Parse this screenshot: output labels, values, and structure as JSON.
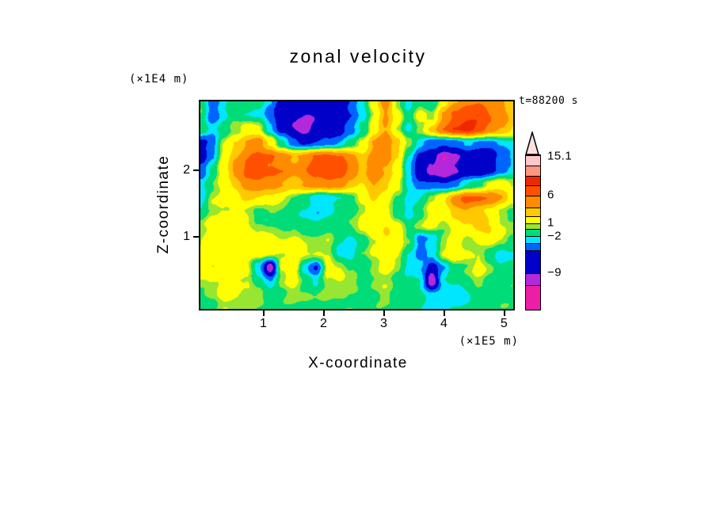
{
  "chart_data": {
    "type": "heatmap",
    "title": "zonal velocity",
    "xlabel": "X-coordinate",
    "ylabel": "Z-coordinate",
    "x_units": "(×1E5 m)",
    "y_units": "(×1E4 m)",
    "annotation": "t=88200 s",
    "xlim": [
      -0.05,
      5.15
    ],
    "zlim": [
      -0.1,
      3.05
    ],
    "x_ticks": [
      1,
      2,
      3,
      4,
      5
    ],
    "z_ticks": [
      1,
      2
    ],
    "grid": "off",
    "levels": [
      -10,
      -8,
      -5,
      -3,
      -1.5,
      0.5,
      1.5,
      4,
      6,
      8.5,
      11,
      13.5
    ],
    "colors": [
      "#EC1EA8",
      "#B428DC",
      "#0000C8",
      "#0064FF",
      "#00E6FF",
      "#00DC78",
      "#96E632",
      "#FFFF00",
      "#FFC800",
      "#FF8C00",
      "#FF5000",
      "#F02800",
      "#FF9680"
    ],
    "field": [
      [
        0,
        -4,
        -2,
        0,
        0,
        -1,
        -3,
        -6,
        -7,
        -7,
        -7,
        -6,
        -6.5,
        -5,
        -2,
        3,
        7,
        1,
        -2,
        0,
        -1,
        3,
        6,
        8,
        8,
        7,
        6,
        4
      ],
      [
        0,
        -4,
        -2,
        0,
        -1,
        -2,
        -4,
        -7,
        -8,
        -8,
        -8,
        -7,
        -7,
        -5,
        -2,
        2,
        6,
        3,
        -1,
        2,
        1,
        6,
        9,
        11,
        11,
        9,
        7,
        5
      ],
      [
        0,
        -2,
        -1,
        1,
        3,
        2,
        -2,
        -6,
        -8,
        -9,
        -7,
        -6,
        -6,
        -4,
        -1,
        3,
        6,
        2,
        -2,
        1,
        5,
        8,
        11,
        12,
        10,
        8,
        6,
        4
      ],
      [
        -6,
        -4,
        1,
        4,
        6,
        7,
        4,
        -1,
        -4,
        -5,
        -5,
        -4,
        -3,
        -1,
        2,
        6,
        8,
        5,
        1,
        -2,
        -4,
        -5,
        -4,
        -3,
        -4,
        -4,
        -3,
        -2
      ],
      [
        -6,
        -3,
        2,
        6,
        8,
        9,
        9,
        7,
        6,
        7,
        9,
        10,
        9,
        7,
        5,
        7,
        8,
        4,
        -2,
        -6,
        -7,
        -10,
        -8,
        -7,
        -7,
        -6,
        -5,
        -3
      ],
      [
        -4,
        -1,
        3,
        7,
        9,
        10,
        9,
        8,
        7,
        8,
        10,
        11,
        10,
        8,
        6,
        7,
        6,
        3,
        -3,
        -7,
        -9,
        -10,
        -8,
        -7,
        -7,
        -6,
        -4,
        -2
      ],
      [
        -2,
        0,
        2,
        5,
        7,
        8,
        7,
        6,
        5,
        6,
        7,
        8,
        7,
        5,
        4,
        6,
        5,
        2,
        -2,
        -4,
        -5,
        -5,
        -4,
        -2,
        0,
        2,
        3,
        2
      ],
      [
        -2.5,
        1,
        2,
        3,
        4,
        4,
        3,
        2,
        1,
        -1,
        -2.5,
        -2.5,
        -2,
        0,
        2,
        4,
        3,
        0,
        -2,
        -1,
        1,
        4,
        7,
        9,
        9,
        8,
        6,
        3
      ],
      [
        -1,
        1,
        2,
        2,
        1,
        0,
        0,
        0,
        -1,
        -2,
        -2.5,
        -2,
        -1,
        0,
        1,
        3,
        2,
        -1,
        -2,
        0,
        2,
        3,
        5,
        6,
        5,
        3,
        1,
        0
      ],
      [
        1,
        2,
        3,
        3,
        2,
        1,
        0,
        0,
        0,
        -1,
        -1,
        0,
        0,
        1,
        2,
        3,
        4,
        2,
        0,
        1,
        2,
        1,
        2,
        4,
        5,
        4,
        2,
        1
      ],
      [
        1,
        2,
        3,
        3,
        3,
        2,
        2,
        2,
        2,
        1,
        1,
        1,
        -1,
        -2,
        -1,
        2,
        4,
        3,
        1,
        -4,
        -3,
        1,
        2,
        1,
        2,
        3,
        2,
        0
      ],
      [
        2,
        2,
        3,
        3,
        3,
        3,
        2,
        2,
        2,
        2,
        2,
        1,
        -2,
        -2.5,
        0,
        2,
        3,
        2,
        -1,
        -4,
        -2,
        2,
        3,
        2,
        1,
        -1,
        -2,
        -2
      ],
      [
        2,
        2,
        3,
        3,
        2,
        -3,
        -10,
        2,
        3,
        -2,
        -5,
        2,
        2,
        0,
        -1,
        1,
        2,
        1,
        -2,
        -3,
        -6,
        -3,
        0,
        1,
        2,
        1,
        -1,
        -1
      ],
      [
        1,
        2,
        2,
        2,
        2,
        -1,
        -3,
        1,
        2,
        0,
        -2,
        1,
        2,
        1,
        0,
        1,
        1,
        0,
        -1,
        -2,
        -10,
        -2,
        -1,
        0,
        1,
        0,
        -1,
        0
      ],
      [
        0,
        1,
        2,
        2,
        1,
        1,
        0,
        0,
        1,
        1,
        0,
        1,
        1,
        0,
        0,
        0,
        1,
        0,
        0,
        -1,
        -2,
        -2.5,
        -2,
        -2,
        -1,
        0,
        0,
        0
      ],
      [
        0,
        0,
        1,
        1,
        1,
        0,
        0,
        0,
        0,
        0,
        0,
        0,
        0,
        0,
        0,
        0,
        0,
        0,
        -1,
        -1,
        -2,
        -2,
        -1,
        -1,
        0,
        0,
        0,
        0
      ]
    ],
    "colorbar": {
      "tip_color": "#FFE0E0",
      "segments": [
        {
          "color": "#FFC8C8",
          "h": 13
        },
        {
          "color": "#FF9680",
          "h": 13
        },
        {
          "color": "#F02800",
          "h": 12
        },
        {
          "color": "#FF5000",
          "h": 13
        },
        {
          "color": "#FF8C00",
          "h": 15
        },
        {
          "color": "#FFC800",
          "h": 11
        },
        {
          "color": "#FFFF00",
          "h": 9
        },
        {
          "color": "#96E632",
          "h": 7
        },
        {
          "color": "#00DC78",
          "h": 9
        },
        {
          "color": "#00E6FF",
          "h": 9
        },
        {
          "color": "#0064FF",
          "h": 9
        },
        {
          "color": "#0000C8",
          "h": 29
        },
        {
          "color": "#B428DC",
          "h": 15
        },
        {
          "color": "#EC1EA8",
          "h": 31
        }
      ],
      "labels": [
        {
          "text": "15.1",
          "offset": 2
        },
        {
          "text": "6",
          "offset": 51
        },
        {
          "text": "1",
          "offset": 86
        },
        {
          "text": "−2",
          "offset": 103
        },
        {
          "text": "−9",
          "offset": 149
        }
      ]
    }
  }
}
